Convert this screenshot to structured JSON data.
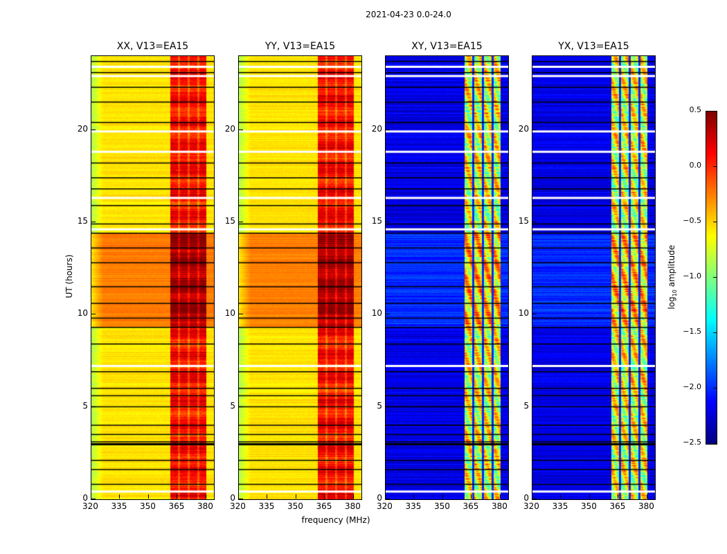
{
  "chart_data": {
    "type": "heatmap",
    "title": "2021-04-23 0.0-24.0",
    "xlabel": "frequency (MHz)",
    "ylabel": "UT (hours)",
    "xlim": [
      320,
      384
    ],
    "ylim": [
      0,
      24
    ],
    "xticks": [
      "320",
      "335",
      "350",
      "365",
      "380"
    ],
    "yticks": [
      "0",
      "5",
      "10",
      "15",
      "20"
    ],
    "colormap": "jet",
    "colorbar": {
      "label_main": "log",
      "label_sub": "10",
      "label_tail": " amplitude",
      "range": [
        -2.5,
        0.5
      ],
      "ticks": [
        "0.5",
        "0.0",
        "−0.5",
        "−1.0",
        "−1.5",
        "−2.0",
        "−2.5"
      ]
    },
    "panels": [
      {
        "title": "XX, V13=EA15",
        "background_log10_amp": -0.55,
        "band_log10_amp": 0.1,
        "high_period_hours": [
          9.3,
          14.4
        ],
        "high_period_offset": 0.3
      },
      {
        "title": "YY, V13=EA15",
        "background_log10_amp": -0.55,
        "band_log10_amp": 0.1,
        "high_period_hours": [
          9.3,
          14.4
        ],
        "high_period_offset": 0.3
      },
      {
        "title": "XY, V13=EA15",
        "background_log10_amp": -2.2,
        "band_log10_amp": -0.7,
        "high_period_hours": [
          9.3,
          14.4
        ],
        "high_period_offset": 0.2
      },
      {
        "title": "YX, V13=EA15",
        "background_log10_amp": -2.2,
        "band_log10_amp": -0.7,
        "high_period_hours": [
          9.3,
          14.4
        ],
        "high_period_offset": 0.2
      }
    ],
    "band_mhz": [
      361,
      380
    ],
    "band_gaps_mhz": [
      365.5,
      370.6,
      375.6
    ],
    "flagged_rows_hours_white": [
      0.4,
      7.2,
      14.6,
      16.3,
      18.8,
      19.9,
      22.9,
      23.4
    ],
    "flagged_rows_hours_black": [
      0.8,
      1.6,
      2.1,
      3.0,
      3.1,
      3.5,
      4.0,
      5.0,
      5.6,
      6.0,
      6.9,
      8.4,
      9.3,
      9.8,
      10.6,
      11.5,
      12.8,
      13.6,
      14.4,
      14.9,
      15.9,
      16.8,
      17.4,
      18.2,
      20.4,
      21.5,
      22.3,
      23.1,
      23.7
    ]
  }
}
